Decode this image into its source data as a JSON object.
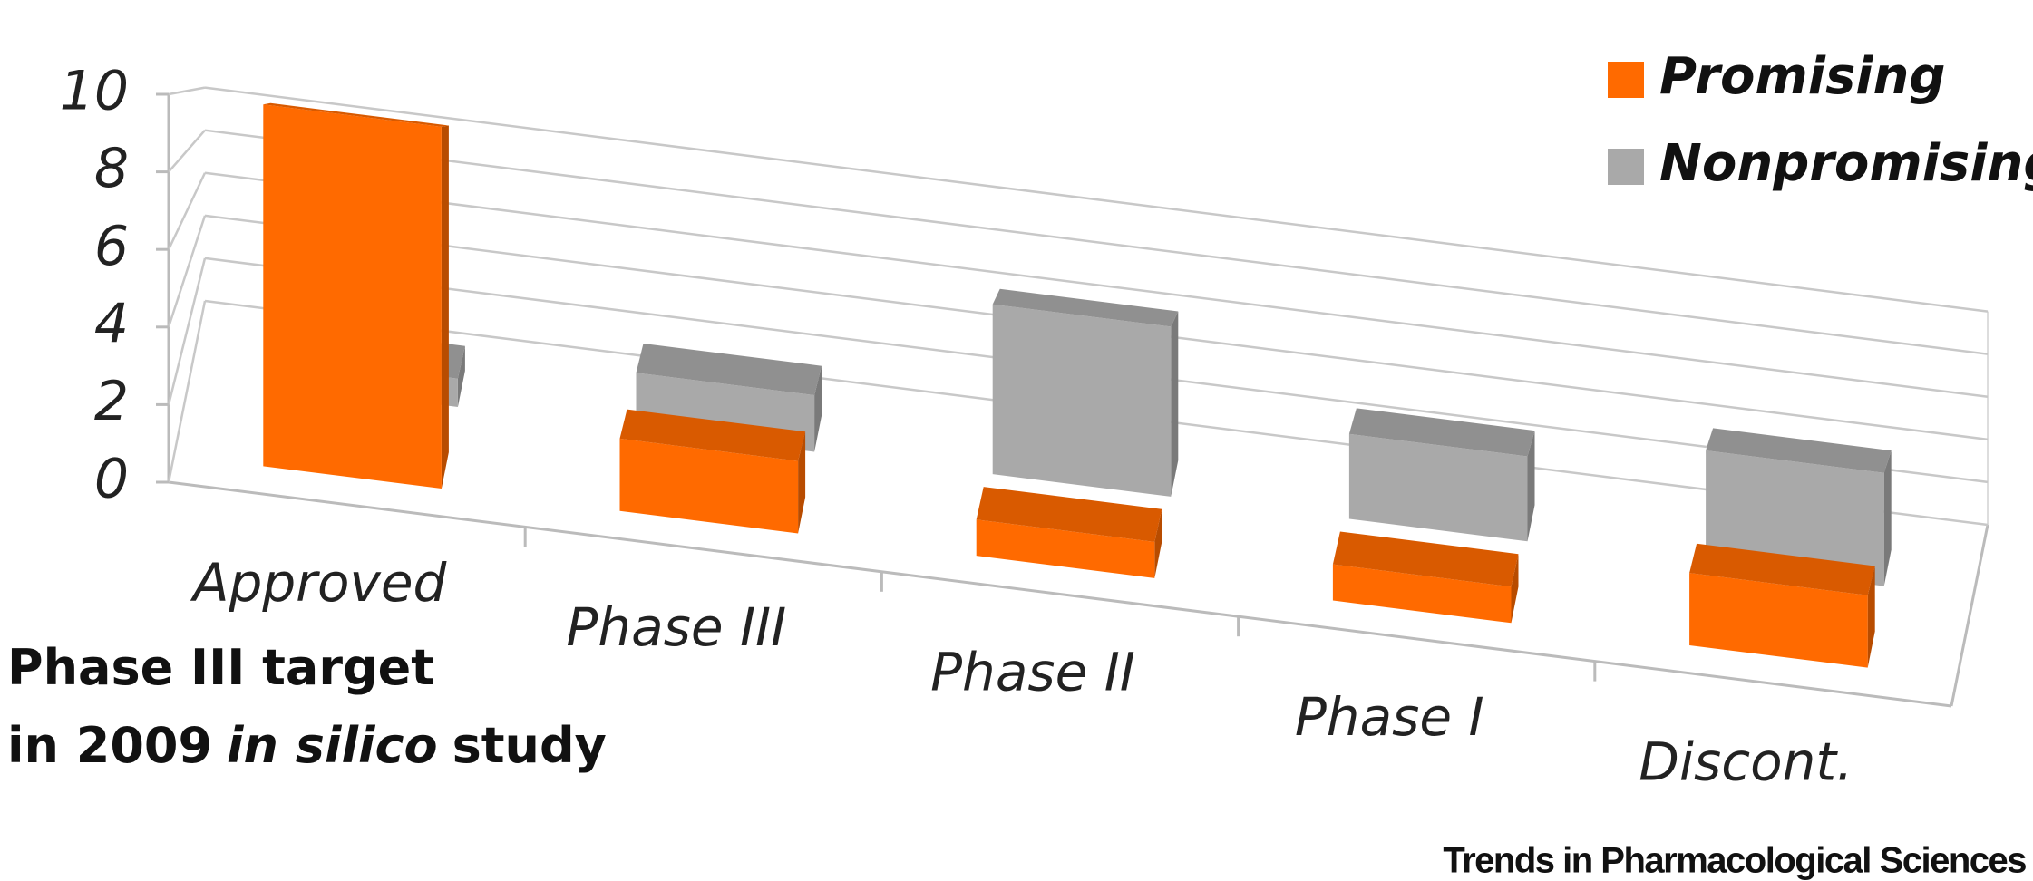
{
  "chart_data": {
    "type": "bar3d",
    "categories": [
      "Approved",
      "Phase III",
      "Phase II",
      "Phase I",
      "Discont."
    ],
    "series": [
      {
        "name": "Promising",
        "color": "#ff6a00",
        "values": [
          10,
          2,
          1,
          1,
          2
        ]
      },
      {
        "name": "Nonpromising",
        "color": "#a9a9a9",
        "values": [
          1,
          2,
          6,
          3,
          4
        ]
      }
    ],
    "ylim": [
      0,
      10
    ],
    "yticks": [
      0,
      2,
      4,
      6,
      8,
      10
    ],
    "grid": true,
    "legend": "top-right",
    "annotation": [
      [
        "Phase III target"
      ],
      [
        "in 2009",
        "in silico",
        "study"
      ]
    ],
    "source": "Trends in Pharmacological Sciences"
  }
}
